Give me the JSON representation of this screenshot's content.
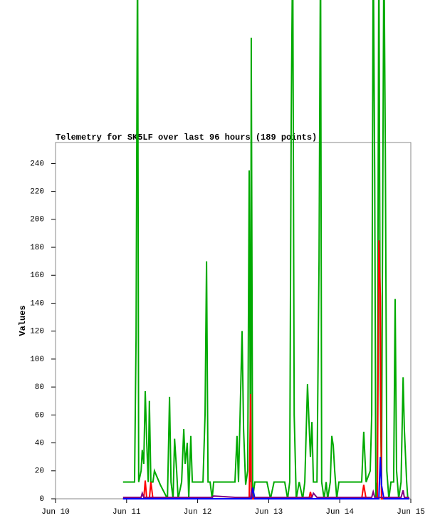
{
  "chart_data": {
    "type": "line",
    "title": "Telemetry for SK5LF over last 96 hours (189 points)",
    "y_label": "Values",
    "xlim": [
      0,
      120
    ],
    "xticks": [
      {
        "value": 0,
        "label": "Jun 10"
      },
      {
        "value": 24,
        "label": "Jun 11"
      },
      {
        "value": 48,
        "label": "Jun 12"
      },
      {
        "value": 72,
        "label": "Jun 13"
      },
      {
        "value": 96,
        "label": "Jun 14"
      },
      {
        "value": 120,
        "label": "Jun 15"
      }
    ],
    "ylim": [
      0,
      255
    ],
    "yticks": [
      0,
      20,
      40,
      60,
      80,
      100,
      120,
      140,
      160,
      180,
      200,
      220,
      240
    ],
    "x": [
      22.8,
      26.7,
      27.2,
      27.7,
      28.1,
      28.9,
      29.3,
      29.8,
      30.3,
      30.8,
      31.3,
      31.7,
      32.2,
      32.9,
      33.4,
      35.4,
      37.8,
      38.5,
      39.0,
      39.7,
      40.2,
      40.9,
      41.4,
      42.6,
      43.3,
      43.8,
      44.5,
      45.0,
      45.7,
      46.2,
      49.8,
      50.5,
      51.0,
      51.5,
      52.2,
      52.9,
      53.4,
      60.6,
      61.3,
      61.8,
      63.0,
      63.5,
      64.2,
      64.9,
      65.4,
      65.9,
      66.1,
      66.6,
      67.3,
      71.4,
      72.6,
      73.8,
      77.4,
      78.4,
      79.1,
      79.6,
      80.1,
      80.6,
      81.3,
      82.3,
      83.5,
      84.2,
      85.1,
      85.6,
      86.1,
      86.6,
      87.1,
      88.3,
      89.0,
      89.5,
      89.9,
      90.7,
      91.4,
      91.9,
      92.8,
      93.3,
      93.8,
      94.3,
      95.0,
      95.7,
      103.4,
      104.1,
      104.9,
      106.3,
      106.8,
      107.3,
      107.8,
      108.2,
      108.7,
      109.2,
      109.7,
      110.1,
      110.9,
      111.4,
      111.9,
      112.6,
      113.3,
      114.2,
      114.7,
      115.2,
      115.9,
      116.7,
      117.4,
      117.8,
      118.6,
      119.0,
      119.5
    ],
    "series": [
      {
        "color": "#00aa00",
        "values": [
          12,
          12,
          115,
          400,
          12,
          20,
          35,
          25,
          77,
          40,
          12,
          70,
          12,
          12,
          20,
          10,
          0,
          73,
          12,
          0,
          43,
          20,
          0,
          12,
          50,
          25,
          40,
          0,
          45,
          12,
          12,
          60,
          170,
          12,
          12,
          0,
          12,
          12,
          45,
          12,
          120,
          50,
          10,
          20,
          235,
          12,
          330,
          0,
          12,
          12,
          0,
          12,
          12,
          0,
          12,
          270,
          400,
          60,
          0,
          12,
          0,
          12,
          82,
          55,
          30,
          55,
          12,
          12,
          170,
          400,
          12,
          0,
          12,
          0,
          12,
          45,
          38,
          20,
          0,
          12,
          12,
          48,
          12,
          20,
          60,
          400,
          230,
          0,
          12,
          400,
          80,
          10,
          400,
          250,
          20,
          0,
          12,
          12,
          143,
          20,
          0,
          12,
          87,
          50,
          12,
          0,
          0
        ]
      },
      {
        "color": "#ff0000",
        "values": [
          0,
          0,
          0,
          0,
          0,
          0,
          0,
          0,
          13,
          0,
          0,
          0,
          12,
          0,
          0,
          0,
          0,
          0,
          0,
          0,
          0,
          0,
          0,
          0,
          0,
          0,
          0,
          0,
          0,
          0,
          0,
          0,
          0,
          0,
          0,
          0,
          0,
          0,
          0,
          0,
          0,
          0,
          0,
          0,
          0,
          75,
          0,
          0,
          0,
          0,
          0,
          0,
          0,
          0,
          0,
          0,
          0,
          0,
          0,
          0,
          0,
          0,
          0,
          0,
          5,
          0,
          0,
          0,
          0,
          0,
          0,
          0,
          0,
          0,
          0,
          0,
          0,
          0,
          0,
          0,
          0,
          10,
          0,
          0,
          0,
          0,
          0,
          0,
          0,
          185,
          145,
          0,
          0,
          0,
          0,
          0,
          0,
          0,
          0,
          0,
          0,
          0,
          0,
          0,
          0,
          0,
          0
        ]
      },
      {
        "color": "#0000ff",
        "values": [
          0,
          0,
          0,
          0,
          0,
          0,
          0,
          0,
          0,
          0,
          0,
          0,
          0,
          0,
          0,
          0,
          0,
          0,
          0,
          0,
          0,
          0,
          0,
          0,
          0,
          0,
          0,
          0,
          0,
          0,
          0,
          0,
          0,
          0,
          0,
          0,
          0,
          0,
          0,
          0,
          0,
          0,
          0,
          0,
          0,
          0,
          0,
          8,
          0,
          0,
          0,
          0,
          0,
          0,
          0,
          0,
          0,
          0,
          0,
          0,
          0,
          0,
          0,
          0,
          0,
          0,
          0,
          0,
          0,
          0,
          0,
          0,
          0,
          0,
          0,
          0,
          0,
          0,
          0,
          0,
          0,
          0,
          0,
          0,
          0,
          0,
          0,
          0,
          0,
          0,
          30,
          10,
          0,
          0,
          0,
          0,
          0,
          0,
          0,
          0,
          0,
          0,
          0,
          0,
          0,
          0,
          0
        ]
      },
      {
        "color": "#800080",
        "values": [
          1,
          1,
          1,
          1,
          1,
          1,
          4,
          1,
          1,
          1,
          1,
          1,
          1,
          1,
          1,
          1,
          1,
          1,
          1,
          1,
          1,
          1,
          1,
          1,
          1,
          1,
          1,
          1,
          1,
          1,
          1,
          1,
          1,
          1,
          1,
          1,
          2,
          1,
          1,
          1,
          1,
          1,
          1,
          1,
          1,
          1,
          5,
          1,
          1,
          1,
          1,
          1,
          1,
          1,
          1,
          1,
          1,
          1,
          1,
          1,
          1,
          1,
          1,
          1,
          1,
          1,
          4,
          1,
          1,
          1,
          1,
          1,
          1,
          1,
          1,
          1,
          1,
          1,
          1,
          1,
          1,
          1,
          1,
          1,
          1,
          5,
          1,
          1,
          1,
          1,
          1,
          1,
          1,
          1,
          1,
          1,
          1,
          1,
          1,
          1,
          1,
          1,
          6,
          1,
          1,
          1,
          1
        ]
      }
    ]
  }
}
